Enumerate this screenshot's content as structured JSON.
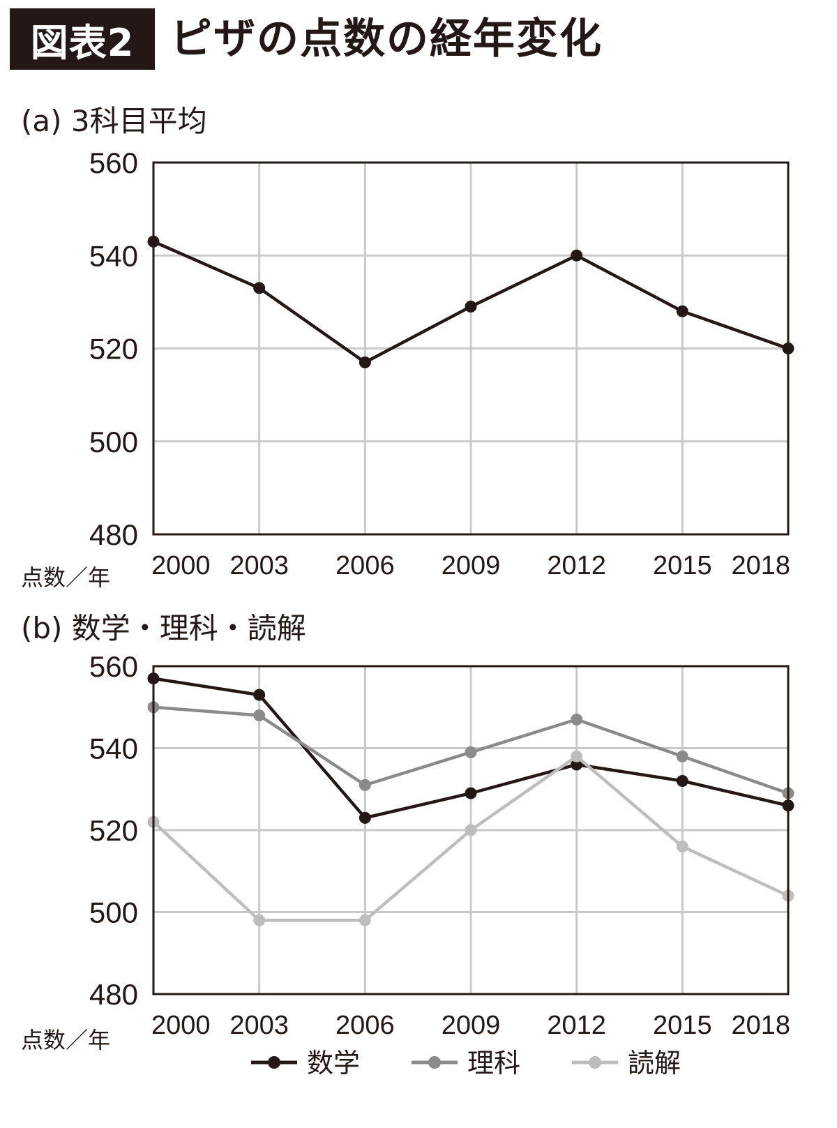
{
  "figure": {
    "tag": "図表2",
    "title": "ピザの点数の経年変化"
  },
  "chart_data": [
    {
      "type": "line",
      "title": "(a) 3科目平均",
      "x": [
        "2000",
        "2003",
        "2006",
        "2009",
        "2012",
        "2015",
        "2018"
      ],
      "series": [
        {
          "name": "",
          "color": "#231815",
          "values": [
            543,
            533,
            517,
            529,
            540,
            528,
            520
          ]
        }
      ],
      "ylim": [
        480,
        560
      ],
      "yticks": [
        560,
        540,
        520,
        500,
        480
      ],
      "unit_label": "点数／年",
      "grid": true
    },
    {
      "type": "line",
      "title": "(b) 数学・理科・読解",
      "x": [
        "2000",
        "2003",
        "2006",
        "2009",
        "2012",
        "2015",
        "2018"
      ],
      "series": [
        {
          "name": "数学",
          "color": "#231815",
          "values": [
            557,
            553,
            523,
            529,
            536,
            532,
            526
          ]
        },
        {
          "name": "理科",
          "color": "#8a8a8a",
          "values": [
            550,
            548,
            531,
            539,
            547,
            538,
            529
          ]
        },
        {
          "name": "読解",
          "color": "#bdbdbd",
          "values": [
            522,
            498,
            498,
            520,
            538,
            516,
            504
          ]
        }
      ],
      "ylim": [
        480,
        560
      ],
      "yticks": [
        560,
        540,
        520,
        500,
        480
      ],
      "unit_label": "点数／年",
      "legend": "bottom",
      "grid": true
    }
  ]
}
